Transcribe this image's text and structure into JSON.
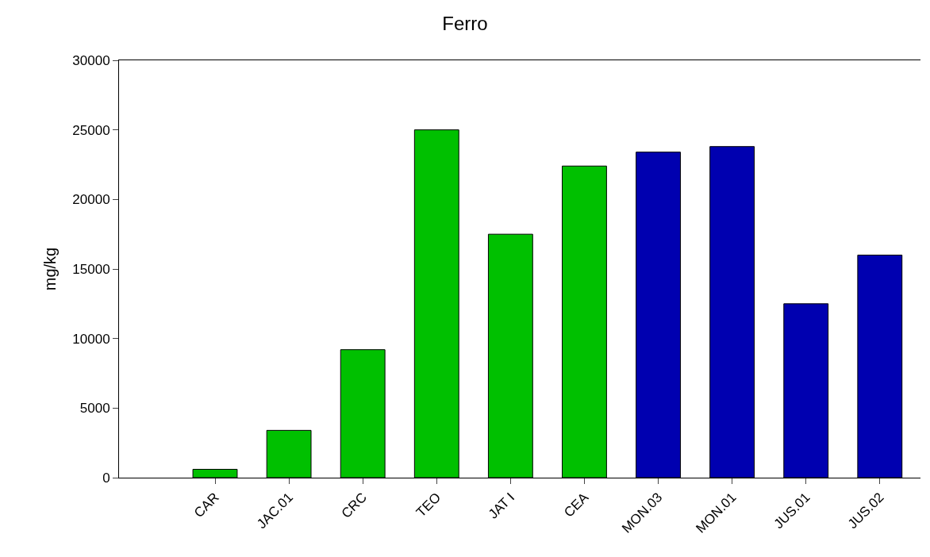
{
  "chart_data": {
    "type": "bar",
    "title": "Ferro",
    "ylabel": "mg/kg",
    "categories": [
      "CAR",
      "JAC.01",
      "CRC",
      "TEO",
      "JAT I",
      "CEA",
      "MON.03",
      "MON.01",
      "JUS.01",
      "JUS.02"
    ],
    "values": [
      600,
      3400,
      9200,
      25000,
      17500,
      22400,
      23400,
      23800,
      12500,
      16000
    ],
    "colors": [
      "#00c000",
      "#00c000",
      "#00c000",
      "#00c000",
      "#00c000",
      "#00c000",
      "#0000b0",
      "#0000b0",
      "#0000b0",
      "#0000b0"
    ],
    "ylim": [
      0,
      30000
    ],
    "yticks": [
      0,
      5000,
      10000,
      15000,
      20000,
      25000,
      30000
    ]
  }
}
